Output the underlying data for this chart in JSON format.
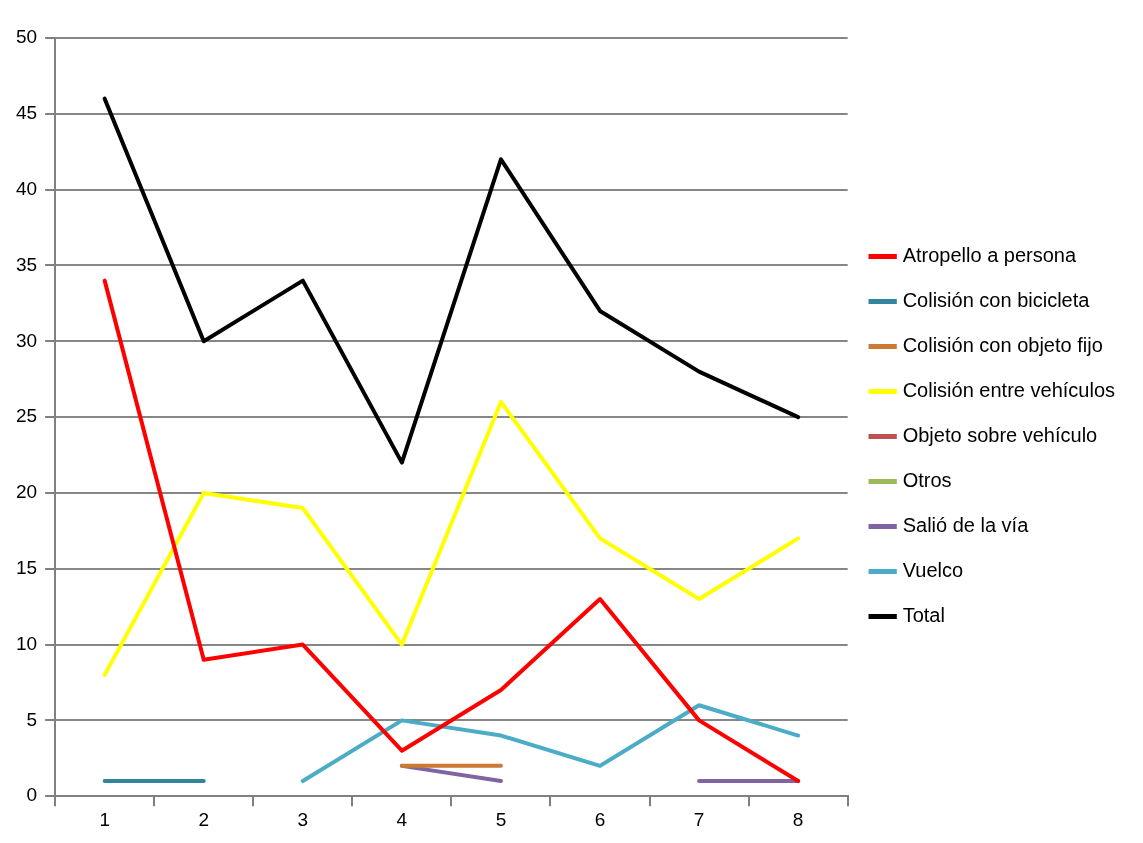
{
  "chart_data": {
    "type": "line",
    "categories": [
      "1",
      "2",
      "3",
      "4",
      "5",
      "6",
      "7",
      "8"
    ],
    "series": [
      {
        "name": "Atropello a persona",
        "color": "#ff0000",
        "values": [
          34,
          9,
          10,
          3,
          7,
          13,
          5,
          1
        ]
      },
      {
        "name": "Colisión con bicicleta",
        "color": "#31859c",
        "values": [
          1,
          1,
          null,
          null,
          null,
          null,
          null,
          null
        ]
      },
      {
        "name": "Colisión con objeto fijo",
        "color": "#cc7a33",
        "values": [
          null,
          null,
          null,
          2,
          2,
          null,
          null,
          null
        ]
      },
      {
        "name": "Colisión entre vehículos",
        "color": "#ffff00",
        "values": [
          8,
          20,
          19,
          10,
          26,
          17,
          13,
          17
        ]
      },
      {
        "name": "Objeto sobre vehículo",
        "color": "#c0504d",
        "values": [
          null,
          null,
          null,
          null,
          null,
          null,
          null,
          null
        ]
      },
      {
        "name": "Otros",
        "color": "#9bbb59",
        "values": [
          null,
          null,
          null,
          null,
          null,
          null,
          null,
          null
        ]
      },
      {
        "name": "Salió de la vía",
        "color": "#8064a2",
        "values": [
          null,
          null,
          null,
          2,
          1,
          null,
          1,
          1
        ]
      },
      {
        "name": "Vuelco",
        "color": "#4bacc6",
        "values": [
          null,
          null,
          1,
          5,
          4,
          2,
          6,
          4
        ]
      },
      {
        "name": "Total",
        "color": "#000000",
        "values": [
          46,
          30,
          34,
          22,
          42,
          32,
          28,
          25
        ]
      }
    ],
    "ylim": [
      0,
      50
    ],
    "yticks": [
      0,
      5,
      10,
      15,
      20,
      25,
      30,
      35,
      40,
      45,
      50
    ],
    "grid": "y",
    "legend": "right",
    "marker": "none",
    "line_style": "solid"
  }
}
